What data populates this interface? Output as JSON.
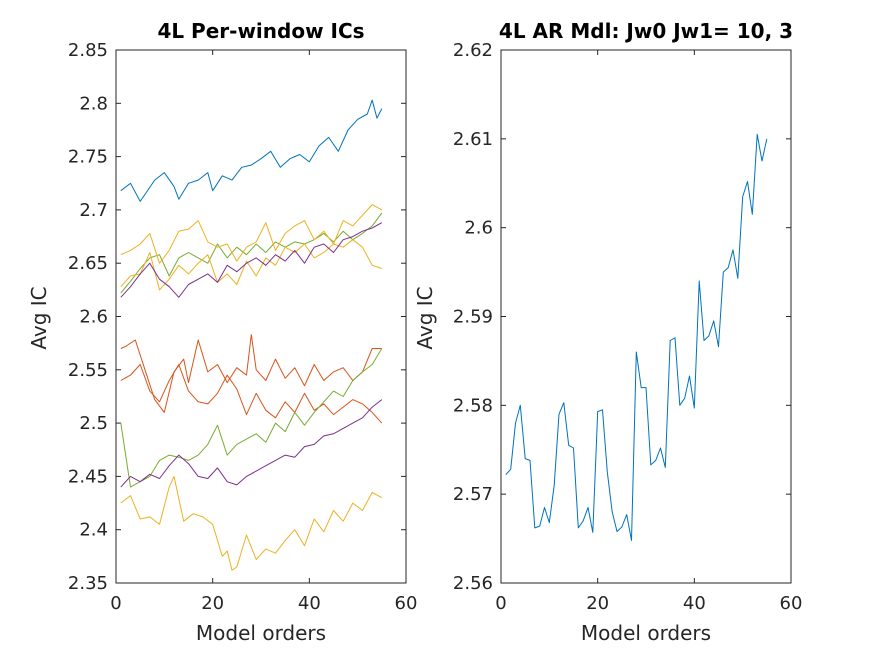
{
  "chart_data": [
    {
      "type": "line",
      "title": "4L Per-window ICs",
      "xlabel": "Model orders",
      "ylabel": "Avg IC",
      "xlim": [
        0,
        60
      ],
      "ylim": [
        2.35,
        2.85
      ],
      "xticks": [
        "0",
        "20",
        "40",
        "60"
      ],
      "yticks": [
        "2.35",
        "2.4",
        "2.45",
        "2.5",
        "2.55",
        "2.6",
        "2.65",
        "2.7",
        "2.75",
        "2.8",
        "2.85"
      ],
      "grid": false,
      "series": [
        {
          "color": "#0072BD",
          "x": [
            1,
            3,
            5,
            8,
            10,
            12,
            13,
            15,
            17,
            19,
            20,
            22,
            24,
            26,
            28,
            30,
            32,
            34,
            36,
            38,
            40,
            42,
            44,
            46,
            48,
            50,
            52,
            53,
            54,
            55
          ],
          "y": [
            2.718,
            2.725,
            2.708,
            2.728,
            2.735,
            2.722,
            2.71,
            2.725,
            2.728,
            2.735,
            2.718,
            2.732,
            2.728,
            2.74,
            2.742,
            2.748,
            2.755,
            2.74,
            2.748,
            2.752,
            2.745,
            2.76,
            2.768,
            2.755,
            2.775,
            2.785,
            2.79,
            2.803,
            2.786,
            2.795
          ]
        },
        {
          "color": "#77AC30",
          "x": [
            1,
            3,
            5,
            7,
            9,
            11,
            13,
            15,
            17,
            19,
            21,
            23,
            25,
            27,
            29,
            31,
            33,
            35,
            37,
            39,
            41,
            43,
            45,
            47,
            49,
            51,
            53,
            55
          ],
          "y": [
            2.622,
            2.633,
            2.645,
            2.655,
            2.658,
            2.638,
            2.655,
            2.66,
            2.655,
            2.65,
            2.668,
            2.655,
            2.665,
            2.658,
            2.668,
            2.66,
            2.67,
            2.665,
            2.67,
            2.668,
            2.672,
            2.678,
            2.67,
            2.68,
            2.672,
            2.678,
            2.685,
            2.697
          ]
        },
        {
          "color": "#EDB120",
          "x": [
            1,
            3,
            5,
            7,
            9,
            11,
            13,
            15,
            17,
            19,
            21,
            23,
            25,
            27,
            29,
            31,
            33,
            35,
            37,
            39,
            41,
            43,
            45,
            47,
            49,
            51,
            53,
            55
          ],
          "y": [
            2.658,
            2.662,
            2.668,
            2.678,
            2.65,
            2.662,
            2.68,
            2.682,
            2.69,
            2.67,
            2.665,
            2.668,
            2.652,
            2.665,
            2.67,
            2.688,
            2.662,
            2.678,
            2.685,
            2.69,
            2.672,
            2.68,
            2.668,
            2.69,
            2.685,
            2.695,
            2.705,
            2.7
          ]
        },
        {
          "color": "#EDB120",
          "x": [
            1,
            3,
            5,
            7,
            9,
            11,
            13,
            15,
            17,
            19,
            21,
            23,
            25,
            27,
            29,
            31,
            33,
            35,
            37,
            39,
            41,
            43,
            45,
            47,
            49,
            51,
            53,
            55
          ],
          "y": [
            2.628,
            2.638,
            2.64,
            2.66,
            2.625,
            2.635,
            2.648,
            2.64,
            2.65,
            2.658,
            2.632,
            2.64,
            2.63,
            2.652,
            2.638,
            2.655,
            2.648,
            2.665,
            2.66,
            2.668,
            2.655,
            2.66,
            2.668,
            2.665,
            2.672,
            2.665,
            2.648,
            2.645
          ]
        },
        {
          "color": "#7E2F8E",
          "x": [
            1,
            3,
            5,
            7,
            9,
            11,
            13,
            15,
            17,
            19,
            21,
            23,
            25,
            27,
            29,
            31,
            33,
            35,
            37,
            39,
            41,
            43,
            45,
            47,
            49,
            51,
            53,
            55
          ],
          "y": [
            2.618,
            2.628,
            2.64,
            2.65,
            2.635,
            2.628,
            2.618,
            2.63,
            2.635,
            2.64,
            2.632,
            2.648,
            2.642,
            2.65,
            2.655,
            2.648,
            2.658,
            2.652,
            2.662,
            2.65,
            2.665,
            2.668,
            2.66,
            2.672,
            2.675,
            2.68,
            2.683,
            2.688
          ]
        },
        {
          "color": "#D95319",
          "x": [
            1,
            2,
            4,
            6,
            8,
            10,
            12,
            14,
            15,
            17,
            19,
            21,
            23,
            25,
            27,
            28,
            29,
            31,
            33,
            35,
            37,
            39,
            41,
            43,
            45,
            47,
            49,
            51,
            53,
            55
          ],
          "y": [
            2.57,
            2.572,
            2.578,
            2.55,
            2.522,
            2.51,
            2.548,
            2.56,
            2.538,
            2.578,
            2.548,
            2.555,
            2.538,
            2.552,
            2.545,
            2.583,
            2.55,
            2.54,
            2.56,
            2.542,
            2.552,
            2.535,
            2.555,
            2.54,
            2.548,
            2.552,
            2.54,
            2.548,
            2.57,
            2.57
          ]
        },
        {
          "color": "#D95319",
          "x": [
            1,
            3,
            5,
            7,
            9,
            11,
            13,
            15,
            17,
            19,
            21,
            23,
            25,
            27,
            29,
            31,
            33,
            35,
            37,
            39,
            41,
            43,
            45,
            47,
            49,
            51,
            53,
            55
          ],
          "y": [
            2.54,
            2.545,
            2.555,
            2.53,
            2.52,
            2.54,
            2.555,
            2.53,
            2.52,
            2.518,
            2.528,
            2.545,
            2.532,
            2.508,
            2.528,
            2.512,
            2.505,
            2.52,
            2.51,
            2.528,
            2.512,
            2.518,
            2.508,
            2.515,
            2.522,
            2.518,
            2.51,
            2.5
          ]
        },
        {
          "color": "#77AC30",
          "x": [
            1,
            3,
            5,
            7,
            9,
            11,
            13,
            15,
            17,
            19,
            21,
            23,
            25,
            27,
            29,
            31,
            33,
            35,
            37,
            39,
            41,
            43,
            45,
            47,
            49,
            51,
            53,
            55
          ],
          "y": [
            2.5,
            2.44,
            2.445,
            2.45,
            2.465,
            2.47,
            2.468,
            2.465,
            2.47,
            2.48,
            2.498,
            2.47,
            2.48,
            2.485,
            2.49,
            2.482,
            2.5,
            2.492,
            2.51,
            2.498,
            2.51,
            2.52,
            2.53,
            2.525,
            2.54,
            2.548,
            2.555,
            2.57
          ]
        },
        {
          "color": "#7E2F8E",
          "x": [
            1,
            3,
            5,
            7,
            9,
            11,
            13,
            15,
            17,
            19,
            21,
            23,
            25,
            27,
            29,
            31,
            33,
            35,
            37,
            39,
            41,
            43,
            45,
            47,
            49,
            51,
            53,
            55
          ],
          "y": [
            2.44,
            2.45,
            2.445,
            2.452,
            2.448,
            2.46,
            2.47,
            2.462,
            2.45,
            2.448,
            2.458,
            2.445,
            2.442,
            2.45,
            2.455,
            2.46,
            2.465,
            2.47,
            2.468,
            2.478,
            2.48,
            2.488,
            2.49,
            2.495,
            2.5,
            2.505,
            2.515,
            2.522
          ]
        },
        {
          "color": "#EDB120",
          "x": [
            1,
            3,
            5,
            7,
            9,
            11,
            12,
            14,
            16,
            18,
            20,
            22,
            23,
            24,
            25,
            27,
            29,
            31,
            33,
            35,
            37,
            39,
            41,
            43,
            45,
            47,
            49,
            51,
            53,
            55
          ],
          "y": [
            2.425,
            2.432,
            2.41,
            2.412,
            2.405,
            2.44,
            2.45,
            2.408,
            2.415,
            2.412,
            2.405,
            2.375,
            2.38,
            2.362,
            2.365,
            2.395,
            2.372,
            2.382,
            2.378,
            2.39,
            2.4,
            2.385,
            2.41,
            2.398,
            2.418,
            2.408,
            2.425,
            2.418,
            2.435,
            2.43
          ]
        }
      ]
    },
    {
      "type": "line",
      "title": "4L AR Mdl: Jw0 Jw1= 10, 3",
      "xlabel": "Model orders",
      "ylabel": "Avg IC",
      "xlim": [
        0,
        60
      ],
      "ylim": [
        2.56,
        2.62
      ],
      "xticks": [
        "0",
        "20",
        "40",
        "60"
      ],
      "yticks": [
        "2.56",
        "2.57",
        "2.58",
        "2.59",
        "2.6",
        "2.61",
        "2.62"
      ],
      "grid": false,
      "series": [
        {
          "color": "#0072BD",
          "x": [
            1,
            2,
            3,
            4,
            5,
            6,
            7,
            8,
            9,
            10,
            11,
            12,
            13,
            14,
            15,
            16,
            17,
            18,
            19,
            20,
            21,
            22,
            23,
            24,
            25,
            26,
            27,
            28,
            29,
            30,
            31,
            32,
            33,
            34,
            35,
            36,
            37,
            38,
            39,
            40,
            41,
            42,
            43,
            44,
            45,
            46,
            47,
            48,
            49,
            50,
            51,
            52,
            53,
            54,
            55
          ],
          "y": [
            2.5722,
            2.5728,
            2.578,
            2.58,
            2.574,
            2.5738,
            2.5662,
            2.5664,
            2.5685,
            2.5668,
            2.571,
            2.579,
            2.5803,
            2.5755,
            2.5752,
            2.5662,
            2.567,
            2.5685,
            2.5657,
            2.5793,
            2.5795,
            2.5725,
            2.568,
            2.5658,
            2.5663,
            2.5677,
            2.5648,
            2.586,
            2.582,
            2.582,
            2.5733,
            2.5738,
            2.5752,
            2.573,
            2.5873,
            2.5876,
            2.58,
            2.5808,
            2.5833,
            2.5797,
            2.594,
            2.5873,
            2.5878,
            2.5895,
            2.5866,
            2.595,
            2.5955,
            2.5975,
            2.5943,
            2.6035,
            2.6052,
            2.6015,
            2.6105,
            2.6075,
            2.61
          ]
        }
      ]
    }
  ]
}
